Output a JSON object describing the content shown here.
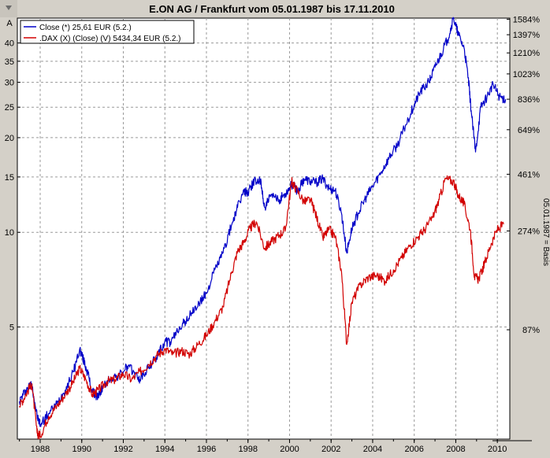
{
  "chart_data": {
    "type": "line",
    "title": "E.ON AG / Frankfurt vom 05.01.1987  bis 17.11.2010",
    "y_scale": "log",
    "ylim": [
      2.2,
      48
    ],
    "xlim": [
      1986.9,
      2010.6
    ],
    "left_ticks": [
      {
        "value": 40,
        "label": "40"
      },
      {
        "value": 35,
        "label": "35"
      },
      {
        "value": 30,
        "label": "30"
      },
      {
        "value": 25,
        "label": "25"
      },
      {
        "value": 20,
        "label": "20"
      },
      {
        "value": 15,
        "label": "15"
      },
      {
        "value": 10,
        "label": "10"
      },
      {
        "value": 5,
        "label": "5"
      }
    ],
    "right_ticks": [
      {
        "value": 47.6,
        "label": "1584%"
      },
      {
        "value": 42.5,
        "label": "1397%"
      },
      {
        "value": 37.2,
        "label": "1210%"
      },
      {
        "value": 31.9,
        "label": "1023%"
      },
      {
        "value": 26.5,
        "label": "836%"
      },
      {
        "value": 21.2,
        "label": "649%"
      },
      {
        "value": 15.3,
        "label": "461%"
      },
      {
        "value": 10.1,
        "label": "274%"
      },
      {
        "value": 4.9,
        "label": "87%"
      }
    ],
    "x_ticks": [
      {
        "value": 1988,
        "label": "1988"
      },
      {
        "value": 1990,
        "label": "1990"
      },
      {
        "value": 1992,
        "label": "1992"
      },
      {
        "value": 1994,
        "label": "1994"
      },
      {
        "value": 1996,
        "label": "1996"
      },
      {
        "value": 1998,
        "label": "1998"
      },
      {
        "value": 2000,
        "label": "2000"
      },
      {
        "value": 2002,
        "label": "2002"
      },
      {
        "value": 2004,
        "label": "2004"
      },
      {
        "value": 2006,
        "label": "2006"
      },
      {
        "value": 2008,
        "label": "2008"
      },
      {
        "value": 2010,
        "label": "2010"
      }
    ],
    "right_axis_label": "05.01.1987 = Basis",
    "grid": true,
    "legend_position": "top-left",
    "series": [
      {
        "name": "Close (*) 25,61 EUR (5.2.)",
        "color": "#0000c8",
        "points": [
          [
            1987.0,
            2.9
          ],
          [
            1987.3,
            3.15
          ],
          [
            1987.6,
            3.3
          ],
          [
            1987.85,
            2.6
          ],
          [
            1988.0,
            2.45
          ],
          [
            1988.4,
            2.65
          ],
          [
            1988.8,
            2.85
          ],
          [
            1989.2,
            3.15
          ],
          [
            1989.6,
            3.6
          ],
          [
            1989.9,
            4.25
          ],
          [
            1990.1,
            3.9
          ],
          [
            1990.3,
            3.55
          ],
          [
            1990.5,
            3.1
          ],
          [
            1990.8,
            3.0
          ],
          [
            1991.0,
            3.2
          ],
          [
            1991.4,
            3.45
          ],
          [
            1991.8,
            3.5
          ],
          [
            1992.2,
            3.75
          ],
          [
            1992.5,
            3.6
          ],
          [
            1992.8,
            3.4
          ],
          [
            1993.2,
            3.7
          ],
          [
            1993.6,
            4.0
          ],
          [
            1994.0,
            4.5
          ],
          [
            1994.3,
            4.45
          ],
          [
            1994.7,
            5.0
          ],
          [
            1995.0,
            5.2
          ],
          [
            1995.3,
            5.55
          ],
          [
            1995.7,
            6.0
          ],
          [
            1996.0,
            6.4
          ],
          [
            1996.4,
            7.6
          ],
          [
            1996.8,
            8.6
          ],
          [
            1997.2,
            10.5
          ],
          [
            1997.5,
            12.0
          ],
          [
            1997.8,
            13.5
          ],
          [
            1998.0,
            13.4
          ],
          [
            1998.3,
            14.6
          ],
          [
            1998.6,
            14.5
          ],
          [
            1998.8,
            12.0
          ],
          [
            1999.1,
            13.0
          ],
          [
            1999.5,
            12.7
          ],
          [
            1999.8,
            13.3
          ],
          [
            2000.1,
            14.2
          ],
          [
            2000.4,
            13.5
          ],
          [
            2000.7,
            14.8
          ],
          [
            2001.0,
            14.5
          ],
          [
            2001.3,
            14.4
          ],
          [
            2001.6,
            14.8
          ],
          [
            2001.9,
            13.8
          ],
          [
            2002.2,
            13.6
          ],
          [
            2002.5,
            11.5
          ],
          [
            2002.75,
            8.6
          ],
          [
            2003.0,
            10.3
          ],
          [
            2003.3,
            11.5
          ],
          [
            2003.7,
            13.0
          ],
          [
            2004.0,
            14.0
          ],
          [
            2004.4,
            15.5
          ],
          [
            2004.8,
            17.3
          ],
          [
            2005.2,
            19.0
          ],
          [
            2005.6,
            22.0
          ],
          [
            2006.0,
            25.5
          ],
          [
            2006.3,
            28.0
          ],
          [
            2006.7,
            30.0
          ],
          [
            2007.0,
            33.5
          ],
          [
            2007.3,
            37.0
          ],
          [
            2007.6,
            41.0
          ],
          [
            2007.9,
            48.0
          ],
          [
            2008.1,
            43.0
          ],
          [
            2008.4,
            38.5
          ],
          [
            2008.6,
            31.0
          ],
          [
            2008.75,
            24.0
          ],
          [
            2008.95,
            18.0
          ],
          [
            2009.2,
            25.0
          ],
          [
            2009.5,
            27.0
          ],
          [
            2009.8,
            29.5
          ],
          [
            2010.1,
            27.0
          ],
          [
            2010.4,
            26.5
          ]
        ]
      },
      {
        "name": ".DAX (X) (Close) (V) 5434,34 EUR (5.2.)",
        "color": "#d20000",
        "points": [
          [
            1987.0,
            2.8
          ],
          [
            1987.3,
            3.05
          ],
          [
            1987.6,
            3.3
          ],
          [
            1987.85,
            2.3
          ],
          [
            1988.0,
            2.25
          ],
          [
            1988.4,
            2.6
          ],
          [
            1988.8,
            2.8
          ],
          [
            1989.2,
            3.05
          ],
          [
            1989.6,
            3.35
          ],
          [
            1989.9,
            3.7
          ],
          [
            1990.2,
            3.4
          ],
          [
            1990.5,
            3.05
          ],
          [
            1990.8,
            3.15
          ],
          [
            1991.2,
            3.35
          ],
          [
            1991.6,
            3.4
          ],
          [
            1992.0,
            3.55
          ],
          [
            1992.4,
            3.4
          ],
          [
            1992.8,
            3.6
          ],
          [
            1993.2,
            3.8
          ],
          [
            1993.6,
            4.05
          ],
          [
            1994.0,
            4.25
          ],
          [
            1994.4,
            4.1
          ],
          [
            1994.8,
            4.2
          ],
          [
            1995.2,
            4.1
          ],
          [
            1995.6,
            4.4
          ],
          [
            1996.0,
            4.7
          ],
          [
            1996.4,
            5.2
          ],
          [
            1996.8,
            5.8
          ],
          [
            1997.2,
            7.4
          ],
          [
            1997.5,
            8.7
          ],
          [
            1997.8,
            9.3
          ],
          [
            1998.1,
            10.3
          ],
          [
            1998.4,
            10.8
          ],
          [
            1998.8,
            8.9
          ],
          [
            1999.1,
            9.3
          ],
          [
            1999.5,
            9.8
          ],
          [
            1999.8,
            10.2
          ],
          [
            2000.1,
            14.5
          ],
          [
            2000.3,
            13.8
          ],
          [
            2000.7,
            12.5
          ],
          [
            2001.0,
            12.7
          ],
          [
            2001.3,
            11.2
          ],
          [
            2001.6,
            9.6
          ],
          [
            2001.9,
            10.2
          ],
          [
            2002.2,
            9.7
          ],
          [
            2002.5,
            7.5
          ],
          [
            2002.75,
            4.4
          ],
          [
            2003.0,
            6.0
          ],
          [
            2003.4,
            6.8
          ],
          [
            2003.8,
            7.2
          ],
          [
            2004.2,
            7.3
          ],
          [
            2004.6,
            7.0
          ],
          [
            2005.0,
            7.6
          ],
          [
            2005.4,
            8.3
          ],
          [
            2005.8,
            9.1
          ],
          [
            2006.2,
            9.7
          ],
          [
            2006.5,
            10.2
          ],
          [
            2006.9,
            11.2
          ],
          [
            2007.2,
            12.7
          ],
          [
            2007.5,
            14.8
          ],
          [
            2007.9,
            14.5
          ],
          [
            2008.1,
            13.2
          ],
          [
            2008.4,
            12.3
          ],
          [
            2008.7,
            10.2
          ],
          [
            2008.9,
            7.2
          ],
          [
            2009.1,
            7.1
          ],
          [
            2009.4,
            8.0
          ],
          [
            2009.7,
            9.2
          ],
          [
            2010.0,
            10.2
          ],
          [
            2010.3,
            10.6
          ]
        ]
      }
    ]
  }
}
